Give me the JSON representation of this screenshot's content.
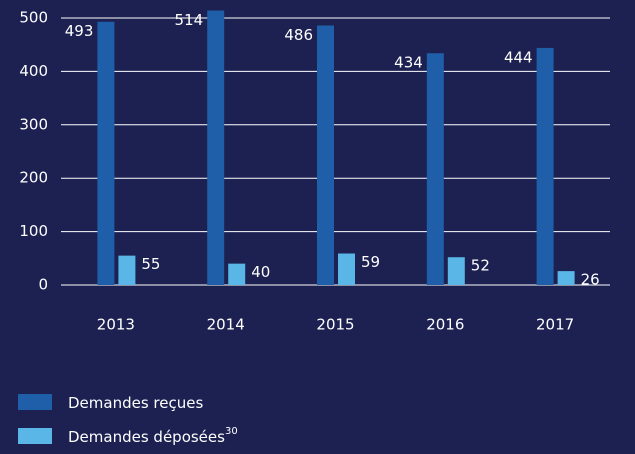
{
  "chart_data": {
    "type": "bar",
    "categories": [
      "2013",
      "2014",
      "2015",
      "2016",
      "2017"
    ],
    "series": [
      {
        "name": "Demandes reçues",
        "color": "#1f5ea8",
        "values": [
          493,
          514,
          486,
          434,
          444
        ]
      },
      {
        "name": "Demandes déposées",
        "note": "30",
        "color": "#5ab6e6",
        "values": [
          55,
          40,
          59,
          52,
          26
        ]
      }
    ],
    "ylim": [
      0,
      500
    ],
    "yticks": [
      0,
      100,
      200,
      300,
      400,
      500
    ],
    "grid": true
  }
}
